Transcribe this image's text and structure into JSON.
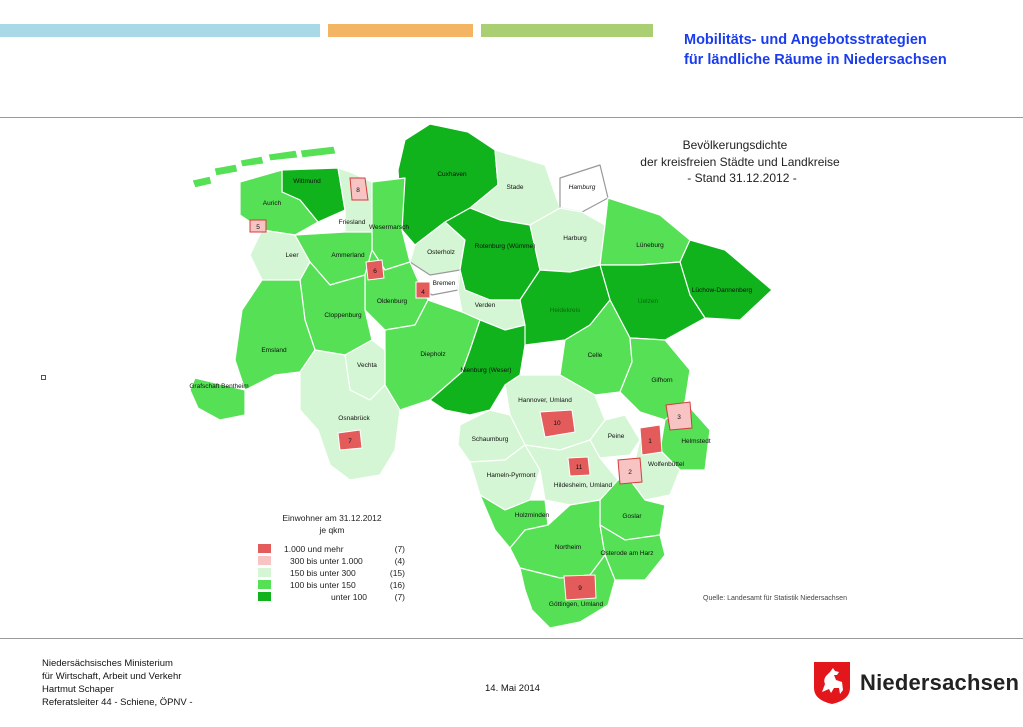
{
  "header": {
    "title_line1": "Mobilitäts- und Angebotsstrategien",
    "title_line2": "für ländliche Räume in Niedersachsen"
  },
  "map": {
    "title_lines": [
      "Bevölkerungsdichte",
      "der kreisfreien Städte und Landkreise",
      "- Stand 31.12.2012 -"
    ],
    "legend_title_lines": [
      "Einwohner am 31.12.2012",
      "je qkm"
    ],
    "legend": [
      {
        "range": "1.000  und mehr",
        "count": "(7)",
        "color": "#e35b5b"
      },
      {
        "range": "300   bis unter  1.000",
        "count": "(4)",
        "color": "#f7c3c3"
      },
      {
        "range": "150   bis unter    300",
        "count": "(15)",
        "color": "#d4f6d4"
      },
      {
        "range": "100   bis unter    150",
        "count": "(16)",
        "color": "#55e055"
      },
      {
        "range": "unter    100",
        "count": "(7)",
        "color": "#10b31c"
      }
    ],
    "source": "Quelle: Landesamt für Statistik Niedersachsen",
    "regions": [
      "Cuxhaven",
      "Wittmund",
      "Aurich",
      "Friesland",
      "Stade",
      "Hamburg",
      "Wesermarsch",
      "Leer",
      "Ammerland",
      "Osterholz",
      "Rotenburg (Wümme)",
      "Harburg",
      "Lüneburg",
      "Lüchow-Dannenberg",
      "Uelzen",
      "Heidekreis",
      "Bremen",
      "Oldenburg",
      "Cloppenburg",
      "Verden",
      "Emsland",
      "Celle",
      "Diepholz",
      "Vechta",
      "Grafschaft Bentheim",
      "Nienburg (Weser)",
      "Gifhorn",
      "Hannover, Umland",
      "Osnabrück",
      "Schaumburg",
      "Peine",
      "Helmstedt",
      "Wolfenbüttel",
      "Hameln-Pyrmont",
      "Hildesheim, Umland",
      "Holzminden",
      "Goslar",
      "Northeim",
      "Osterode am Harz",
      "Göttingen, Umland"
    ],
    "city_numbers": [
      "1",
      "2",
      "3",
      "4",
      "5",
      "6",
      "7",
      "8",
      "9",
      "10",
      "11"
    ]
  },
  "footer": {
    "org_lines": [
      "Niedersächsisches Ministerium",
      "für Wirtschaft, Arbeit und Verkehr",
      "Hartmut Schaper",
      "Referatsleiter 44 - Schiene, ÖPNV -"
    ],
    "date": "14. Mai 2014",
    "logo_text": "Niedersachsen"
  },
  "colors": {
    "title": "#1a3cf0",
    "dark_green": "#10b31c",
    "mid_green": "#55e055",
    "light_green": "#d4f6d4",
    "pink": "#f7c3c3",
    "red": "#e35b5b"
  }
}
